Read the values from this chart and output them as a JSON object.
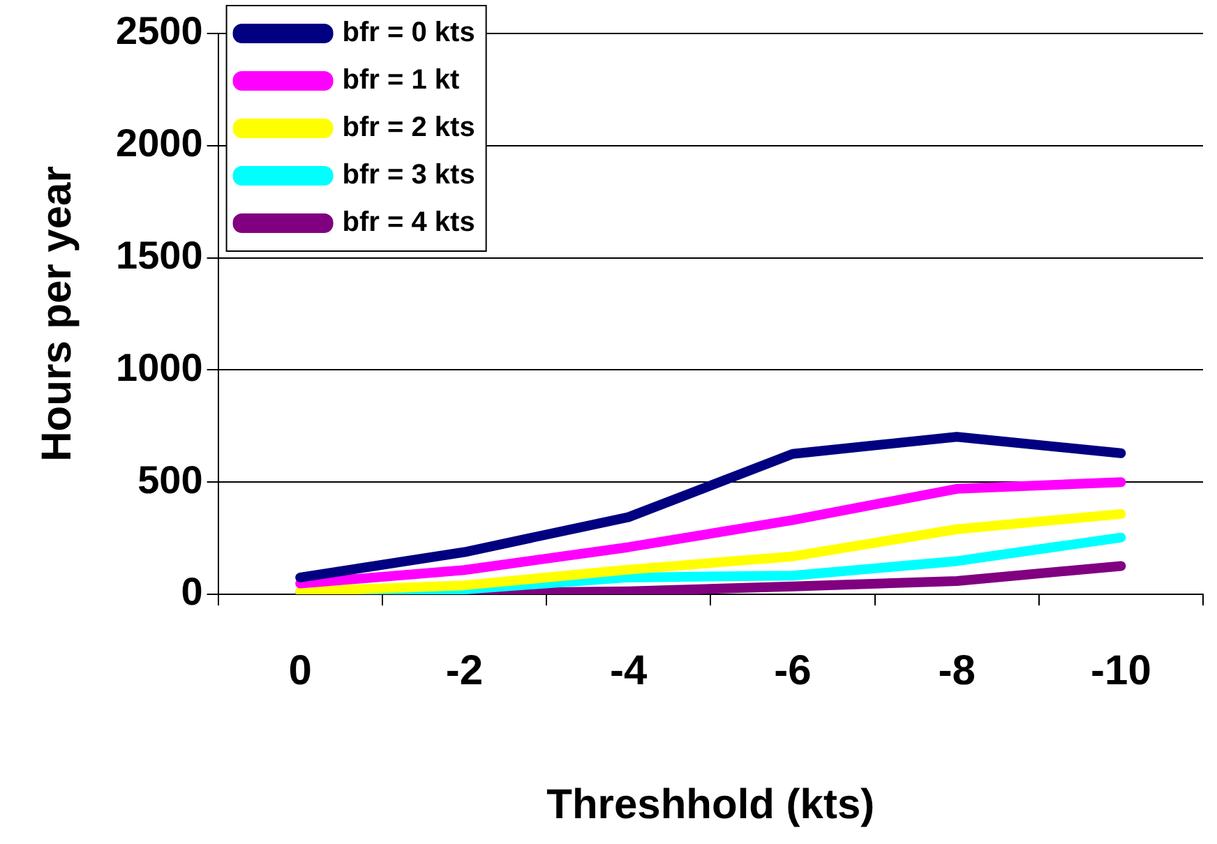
{
  "chart_data": {
    "type": "line",
    "xlabel": "Threshhold (kts)",
    "ylabel": "Hours per year",
    "categories": [
      "0",
      "-2",
      "-4",
      "-6",
      "-8",
      "-10"
    ],
    "ylim": [
      0,
      2500
    ],
    "yticks": [
      0,
      500,
      1000,
      1500,
      2000,
      2500
    ],
    "grid": "y",
    "legend": "top left",
    "marker": "none",
    "line_style": "solid",
    "series": [
      {
        "name": "bfr = 0 kts",
        "color": "#000080",
        "values": [
          75,
          188,
          344,
          626,
          702,
          629
        ]
      },
      {
        "name": "bfr = 1 kt",
        "color": "#ff00ff",
        "values": [
          48,
          108,
          210,
          331,
          470,
          500
        ]
      },
      {
        "name": "bfr = 2 kts",
        "color": "#ffff00",
        "values": [
          13,
          40,
          110,
          169,
          290,
          358
        ]
      },
      {
        "name": "bfr = 3 kts",
        "color": "#00ffff",
        "values": [
          8,
          22,
          75,
          83,
          148,
          253
        ]
      },
      {
        "name": "bfr = 4 kts",
        "color": "#800080",
        "values": [
          3,
          5,
          13,
          35,
          59,
          126
        ]
      }
    ]
  }
}
